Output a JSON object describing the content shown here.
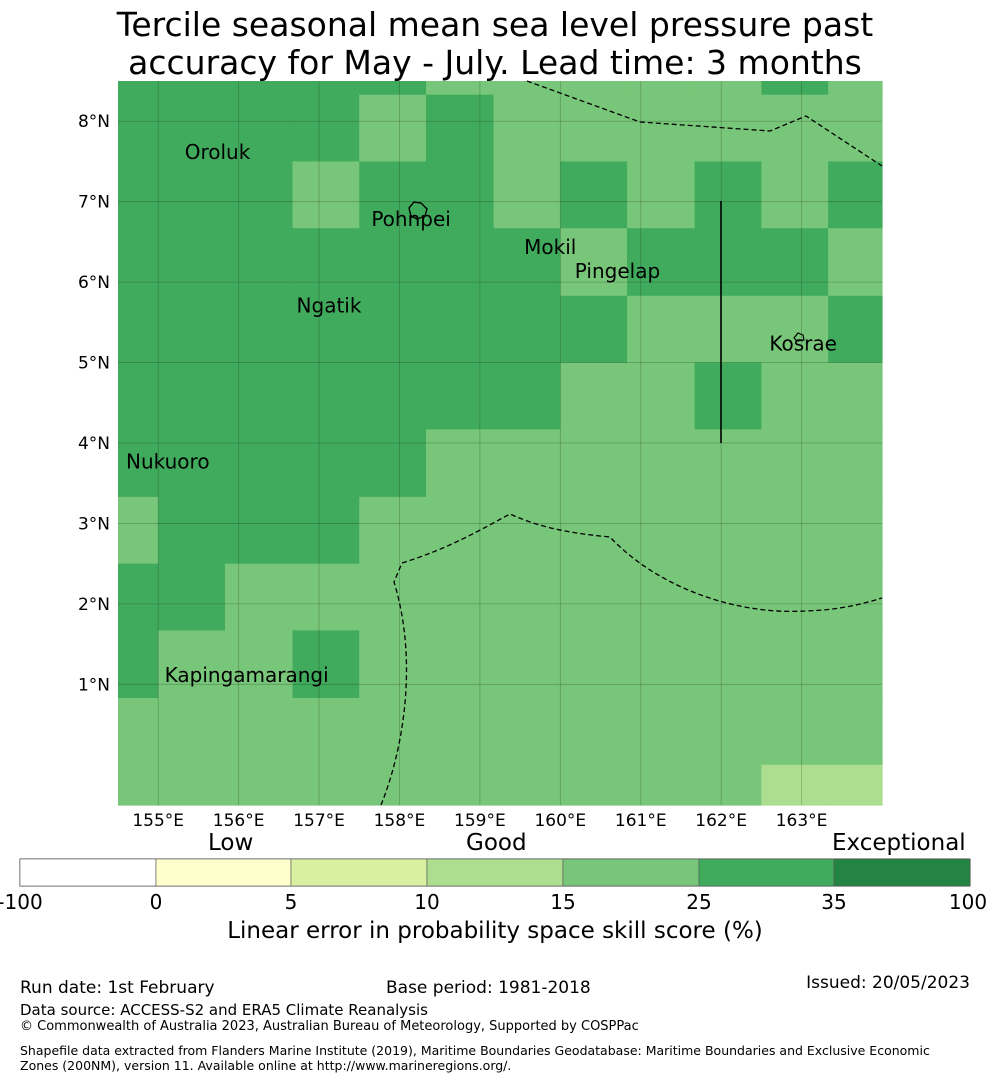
{
  "title": {
    "line1": "Tercile seasonal mean sea level pressure past",
    "line2": "accuracy for May - July. Lead time: 3 months"
  },
  "map": {
    "lat_labels": [
      "8°N",
      "7°N",
      "6°N",
      "5°N",
      "4°N",
      "3°N",
      "2°N",
      "1°N"
    ],
    "lon_labels": [
      "155°E",
      "156°E",
      "157°E",
      "158°E",
      "159°E",
      "160°E",
      "161°E",
      "162°E",
      "163°E"
    ],
    "grid": {
      "lon_min": 154.5,
      "lon_max": 164.0,
      "lat_min": -0.5,
      "lat_max": 8.5,
      "col_lons": [
        154.5,
        155.0,
        155.83,
        156.67,
        157.5,
        158.33,
        159.17,
        160.0,
        160.83,
        161.67,
        162.5,
        163.33,
        164.0
      ],
      "row_lats": [
        8.5,
        8.33,
        7.5,
        6.67,
        5.83,
        5.0,
        4.17,
        3.33,
        2.5,
        1.67,
        0.83,
        0.0,
        -0.5
      ],
      "classes": [
        [
          5,
          5,
          5,
          5,
          5,
          4,
          4,
          4,
          4,
          4,
          5,
          4
        ],
        [
          5,
          5,
          5,
          5,
          4,
          5,
          4,
          4,
          4,
          4,
          4,
          4
        ],
        [
          5,
          5,
          5,
          4,
          5,
          5,
          4,
          5,
          4,
          5,
          4,
          5
        ],
        [
          5,
          5,
          5,
          5,
          5,
          5,
          5,
          4,
          5,
          5,
          5,
          4
        ],
        [
          5,
          5,
          5,
          5,
          5,
          5,
          5,
          5,
          4,
          4,
          4,
          5
        ],
        [
          5,
          5,
          5,
          5,
          5,
          5,
          5,
          4,
          4,
          5,
          4,
          4
        ],
        [
          5,
          5,
          5,
          5,
          5,
          4,
          4,
          4,
          4,
          4,
          4,
          4
        ],
        [
          4,
          5,
          5,
          5,
          4,
          4,
          4,
          4,
          4,
          4,
          4,
          4
        ],
        [
          5,
          5,
          4,
          4,
          4,
          4,
          4,
          4,
          4,
          4,
          4,
          4
        ],
        [
          5,
          4,
          4,
          5,
          4,
          4,
          4,
          4,
          4,
          4,
          4,
          4
        ],
        [
          4,
          4,
          4,
          4,
          4,
          4,
          4,
          4,
          4,
          4,
          4,
          4
        ],
        [
          4,
          4,
          4,
          4,
          4,
          4,
          4,
          4,
          4,
          4,
          3,
          3
        ]
      ]
    },
    "places": [
      {
        "name": "Oroluk",
        "lon": 155.33,
        "lat": 7.53
      },
      {
        "name": "Pohnpei",
        "lon": 157.65,
        "lat": 6.7
      },
      {
        "name": "Mokil",
        "lon": 159.55,
        "lat": 6.35
      },
      {
        "name": "Pingelap",
        "lon": 160.18,
        "lat": 6.05
      },
      {
        "name": "Ngatik",
        "lon": 156.72,
        "lat": 5.62
      },
      {
        "name": "Kosrae",
        "lon": 162.6,
        "lat": 5.15
      },
      {
        "name": "Nukuoro",
        "lon": 154.6,
        "lat": 3.68
      },
      {
        "name": "Kapingamarangi",
        "lon": 155.08,
        "lat": 1.03
      }
    ]
  },
  "colorbar": {
    "categories": [
      "Low",
      "Good",
      "Exceptional"
    ],
    "ticks": [
      "-100",
      "0",
      "5",
      "10",
      "15",
      "25",
      "35",
      "100"
    ],
    "colors": [
      "#ffffff",
      "#ffffcc",
      "#d9f0a3",
      "#addd8e",
      "#78c679",
      "#41ab5d",
      "#238443"
    ],
    "label": "Linear error in probability space skill score (%)"
  },
  "footer": {
    "run_date": "Run date: 1st February",
    "base_period": "Base period: 1981-2018",
    "issued": "Issued: 20/05/2023",
    "data_source": "Data source: ACCESS-S2 and ERA5 Climate Reanalysis",
    "copyright": "© Commonwealth of Australia 2023, Australian Bureau of Meteorology, Supported by COSPPac",
    "shapefile": "Shapefile data extracted from Flanders Marine Institute (2019), Maritime Boundaries Geodatabase: Maritime Boundaries and Exclusive Economic Zones (200NM), version 11. Available online at http://www.marineregions.org/."
  }
}
